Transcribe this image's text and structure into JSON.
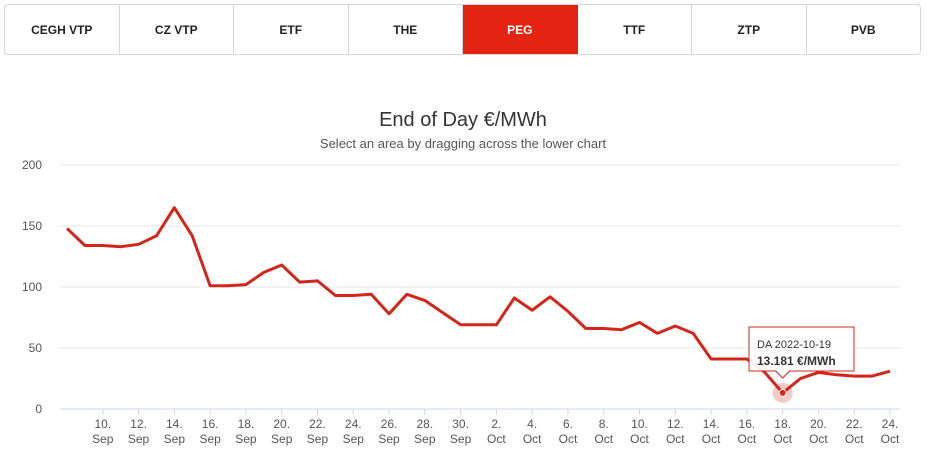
{
  "tabs": [
    {
      "label": "CEGH VTP",
      "active": false
    },
    {
      "label": "CZ VTP",
      "active": false
    },
    {
      "label": "ETF",
      "active": false
    },
    {
      "label": "THE",
      "active": false
    },
    {
      "label": "PEG",
      "active": true
    },
    {
      "label": "TTF",
      "active": false
    },
    {
      "label": "ZTP",
      "active": false
    },
    {
      "label": "PVB",
      "active": false
    }
  ],
  "colors": {
    "accent": "#e42313",
    "line": "#d3261a"
  },
  "chart_data": {
    "type": "line",
    "title": "End of Day €/MWh",
    "subtitle": "Select an area by dragging across the lower chart",
    "ylim": [
      0,
      200
    ],
    "yticks": [
      0,
      50,
      100,
      150,
      200
    ],
    "xlim": [
      "2022-09-08",
      "2022-10-24"
    ],
    "xticks": [
      {
        "date": "2022-09-10",
        "day": "10.",
        "month": "Sep"
      },
      {
        "date": "2022-09-12",
        "day": "12.",
        "month": "Sep"
      },
      {
        "date": "2022-09-14",
        "day": "14.",
        "month": "Sep"
      },
      {
        "date": "2022-09-16",
        "day": "16.",
        "month": "Sep"
      },
      {
        "date": "2022-09-18",
        "day": "18.",
        "month": "Sep"
      },
      {
        "date": "2022-09-20",
        "day": "20.",
        "month": "Sep"
      },
      {
        "date": "2022-09-22",
        "day": "22.",
        "month": "Sep"
      },
      {
        "date": "2022-09-24",
        "day": "24.",
        "month": "Sep"
      },
      {
        "date": "2022-09-26",
        "day": "26.",
        "month": "Sep"
      },
      {
        "date": "2022-09-28",
        "day": "28.",
        "month": "Sep"
      },
      {
        "date": "2022-09-30",
        "day": "30.",
        "month": "Sep"
      },
      {
        "date": "2022-10-02",
        "day": "2.",
        "month": "Oct"
      },
      {
        "date": "2022-10-04",
        "day": "4.",
        "month": "Oct"
      },
      {
        "date": "2022-10-06",
        "day": "6.",
        "month": "Oct"
      },
      {
        "date": "2022-10-08",
        "day": "8.",
        "month": "Oct"
      },
      {
        "date": "2022-10-10",
        "day": "10.",
        "month": "Oct"
      },
      {
        "date": "2022-10-12",
        "day": "12.",
        "month": "Oct"
      },
      {
        "date": "2022-10-14",
        "day": "14.",
        "month": "Oct"
      },
      {
        "date": "2022-10-16",
        "day": "16.",
        "month": "Oct"
      },
      {
        "date": "2022-10-18",
        "day": "18.",
        "month": "Oct"
      },
      {
        "date": "2022-10-20",
        "day": "20.",
        "month": "Oct"
      },
      {
        "date": "2022-10-22",
        "day": "22.",
        "month": "Oct"
      },
      {
        "date": "2022-10-24",
        "day": "24.",
        "month": "Oct"
      }
    ],
    "grid": true,
    "legend": false,
    "series": [
      {
        "points": [
          [
            "2022-09-08",
            148
          ],
          [
            "2022-09-09",
            134
          ],
          [
            "2022-09-10",
            134
          ],
          [
            "2022-09-11",
            133
          ],
          [
            "2022-09-12",
            135
          ],
          [
            "2022-09-13",
            142
          ],
          [
            "2022-09-14",
            165
          ],
          [
            "2022-09-15",
            142
          ],
          [
            "2022-09-16",
            101
          ],
          [
            "2022-09-17",
            101
          ],
          [
            "2022-09-18",
            102
          ],
          [
            "2022-09-19",
            112
          ],
          [
            "2022-09-20",
            118
          ],
          [
            "2022-09-21",
            104
          ],
          [
            "2022-09-22",
            105
          ],
          [
            "2022-09-23",
            93
          ],
          [
            "2022-09-24",
            93
          ],
          [
            "2022-09-25",
            94
          ],
          [
            "2022-09-26",
            78
          ],
          [
            "2022-09-27",
            94
          ],
          [
            "2022-09-28",
            89
          ],
          [
            "2022-09-29",
            79
          ],
          [
            "2022-09-30",
            69
          ],
          [
            "2022-10-01",
            69
          ],
          [
            "2022-10-02",
            69
          ],
          [
            "2022-10-03",
            91
          ],
          [
            "2022-10-04",
            81
          ],
          [
            "2022-10-05",
            92
          ],
          [
            "2022-10-06",
            80
          ],
          [
            "2022-10-07",
            66
          ],
          [
            "2022-10-08",
            66
          ],
          [
            "2022-10-09",
            65
          ],
          [
            "2022-10-10",
            71
          ],
          [
            "2022-10-11",
            62
          ],
          [
            "2022-10-12",
            68
          ],
          [
            "2022-10-13",
            62
          ],
          [
            "2022-10-14",
            41
          ],
          [
            "2022-10-15",
            41
          ],
          [
            "2022-10-16",
            41
          ],
          [
            "2022-10-17",
            30
          ],
          [
            "2022-10-18",
            13.181
          ],
          [
            "2022-10-19",
            25
          ],
          [
            "2022-10-20",
            30
          ],
          [
            "2022-10-21",
            28
          ],
          [
            "2022-10-22",
            27
          ],
          [
            "2022-10-23",
            27
          ],
          [
            "2022-10-24",
            31
          ]
        ]
      }
    ],
    "tooltip": {
      "date": "2022-10-18",
      "value": 13.181,
      "label": "DA 2022-10-19",
      "value_text": "13.181 €/MWh"
    }
  }
}
